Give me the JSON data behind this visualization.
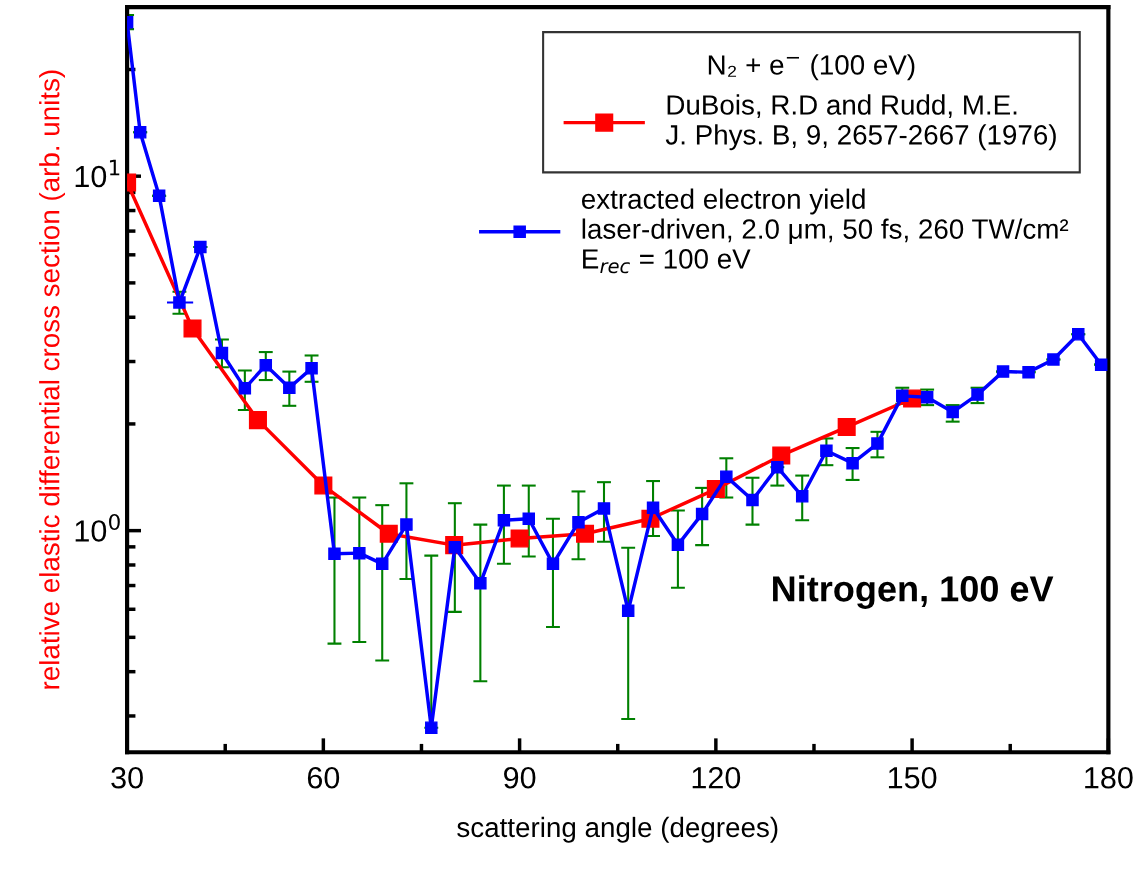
{
  "chart_data": {
    "type": "line",
    "xlabel": "scattering angle (degrees)",
    "ylabel": "relative elastic differential cross section (arb. units)",
    "legend_title": "N₂ + e$^{−}$ (100 eV)",
    "legend": "top right",
    "marker": "square",
    "log": "y",
    "xlim": [
      30,
      180
    ],
    "xticks": [
      30,
      60,
      90,
      120,
      150,
      180
    ],
    "ylim": [
      0.237,
      30
    ],
    "yticks": [
      {
        "value": 1,
        "label": "10$^{0}$"
      },
      {
        "value": 10,
        "label": "10$^{1}$"
      }
    ],
    "grid": false,
    "annotations": [
      "Nitrogen, 100 eV"
    ],
    "series": [
      {
        "name": "DuBois, R.D and Rudd, M.E.\nJ. Phys. B, 9, 2657-2667 (1976)",
        "color": "#ff0000",
        "x": [
          30,
          40,
          50,
          60,
          70,
          80,
          90,
          100,
          110,
          120,
          130,
          140,
          150
        ],
        "values": [
          9.6,
          3.72,
          2.05,
          1.34,
          0.98,
          0.91,
          0.95,
          0.98,
          1.08,
          1.31,
          1.63,
          1.96,
          2.36
        ]
      },
      {
        "name": "extracted electron yield\nlaser-driven, 2.0 μm, 50 fs, 260 TW/cm²\nE$_{rec}$ = 100 eV",
        "color": "#0000ff",
        "x": [
          30,
          32,
          34.9,
          38,
          41.2,
          44.5,
          48,
          51.2,
          54.8,
          58.2,
          61.7,
          65.5,
          69,
          72.7,
          76.5,
          80.1,
          84,
          87.6,
          91.4,
          95.1,
          99,
          102.9,
          106.6,
          110.4,
          114.2,
          117.9,
          121.6,
          125.6,
          129.4,
          133.2,
          136.9,
          140.9,
          144.7,
          148.5,
          152.3,
          156.2,
          160,
          163.9,
          167.8,
          171.6,
          175.4,
          178.9
        ],
        "values": [
          27.2,
          13.3,
          8.8,
          4.4,
          6.31,
          3.17,
          2.52,
          2.93,
          2.53,
          2.87,
          0.86,
          0.864,
          0.806,
          1.04,
          0.278,
          0.898,
          0.71,
          1.07,
          1.08,
          0.806,
          1.056,
          1.155,
          0.594,
          1.16,
          0.912,
          1.115,
          1.42,
          1.22,
          1.51,
          1.25,
          1.68,
          1.55,
          1.76,
          2.4,
          2.38,
          2.16,
          2.42,
          2.81,
          2.8,
          3.04,
          3.58,
          2.94
        ],
        "errors": [
          [
            26,
            28.5
          ],
          null,
          null,
          [
            4.09,
            4.72
          ],
          null,
          [
            2.89,
            3.46
          ],
          [
            2.19,
            2.83
          ],
          [
            2.66,
            3.19
          ],
          [
            2.25,
            2.81
          ],
          [
            2.63,
            3.12
          ],
          [
            0.48,
            1.24
          ],
          [
            0.485,
            1.24
          ],
          [
            0.43,
            1.18
          ],
          [
            0.73,
            1.36
          ],
          [
            0.278,
            0.85
          ],
          [
            0.59,
            1.195
          ],
          [
            0.376,
            1.04
          ],
          [
            0.806,
            1.34
          ],
          [
            0.845,
            1.34
          ],
          [
            0.535,
            1.08
          ],
          [
            0.83,
            1.29
          ],
          [
            0.93,
            1.37
          ],
          [
            0.294,
            0.895
          ],
          [
            0.966,
            1.38
          ],
          [
            0.69,
            1.14
          ],
          [
            0.91,
            1.32
          ],
          [
            1.24,
            1.6
          ],
          [
            1.04,
            1.41
          ],
          [
            1.34,
            1.51
          ],
          [
            1.07,
            1.43
          ],
          [
            1.53,
            1.82
          ],
          [
            1.39,
            1.71
          ],
          [
            1.61,
            1.9
          ],
          [
            2.28,
            2.53
          ],
          [
            2.26,
            2.5
          ],
          [
            2.03,
            2.26
          ],
          [
            2.29,
            2.53
          ],
          null,
          null,
          null,
          null,
          null
        ],
        "xerrors": [
          null,
          null,
          null,
          [
            36.1,
            40.1
          ],
          null,
          null,
          null,
          null,
          null,
          null,
          null,
          null,
          null,
          null,
          null,
          null,
          null,
          null,
          null,
          null,
          null,
          null,
          null,
          null,
          null,
          null,
          null,
          null,
          null,
          null,
          null,
          null,
          null,
          null,
          null,
          null,
          null,
          null,
          null,
          null,
          null,
          null
        ]
      }
    ]
  }
}
